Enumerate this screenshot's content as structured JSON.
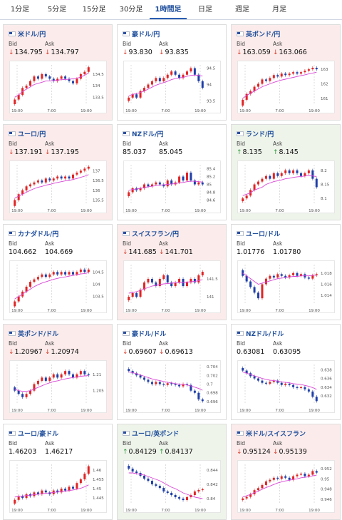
{
  "tabs": [
    {
      "label": "1分足",
      "active": false
    },
    {
      "label": "5分足",
      "active": false
    },
    {
      "label": "15分足",
      "active": false
    },
    {
      "label": "30分足",
      "active": false
    },
    {
      "label": "1時間足",
      "active": true
    },
    {
      "label": "日足",
      "active": false
    },
    {
      "label": "週足",
      "active": false
    },
    {
      "label": "月足",
      "active": false
    }
  ],
  "bid_label": "Bid",
  "ask_label": "Ask",
  "colors": {
    "up_candle": "#e02424",
    "down_candle": "#1f3fa8",
    "ma": "#d946d6",
    "pair_text": "#1f4e9c",
    "arrow_down": "#d93a2b",
    "arrow_up": "#2e9a3a"
  },
  "cards": [
    {
      "pair": "米ドル/円",
      "bid": "134.795",
      "ask": "134.797",
      "dir": "down",
      "bg": "down",
      "chart_data": {
        "type": "candlestick",
        "x_labels": [
          "19:00",
          "7:00",
          "19:00"
        ],
        "y_ticks": [
          "134.5",
          "134",
          "133.5"
        ],
        "ylim": [
          133.2,
          134.9
        ],
        "closes": [
          133.4,
          133.6,
          133.9,
          134.0,
          134.2,
          134.4,
          134.3,
          134.5,
          134.4,
          134.3,
          134.2,
          134.3,
          134.4,
          134.3,
          134.2,
          134.1,
          134.3,
          134.5,
          134.6,
          134.8
        ],
        "ma": [
          133.5,
          133.6,
          133.75,
          133.85,
          133.95,
          134.05,
          134.1,
          134.15,
          134.2,
          134.2,
          134.22,
          134.24,
          134.26,
          134.27,
          134.28,
          134.3,
          134.32,
          134.38,
          134.45,
          134.55
        ]
      }
    },
    {
      "pair": "豪ドル/円",
      "bid": "93.830",
      "ask": "93.835",
      "dir": "down",
      "bg": "flat",
      "chart_data": {
        "type": "candlestick",
        "x_labels": [
          "19:00",
          "7:00",
          "19:00"
        ],
        "y_ticks": [
          "94.5",
          "94",
          "93.5"
        ],
        "ylim": [
          93.4,
          94.6
        ],
        "closes": [
          93.6,
          93.7,
          93.6,
          93.8,
          93.9,
          94.0,
          94.1,
          94.2,
          94.1,
          94.2,
          94.3,
          94.4,
          94.3,
          94.2,
          94.3,
          94.4,
          94.5,
          94.3,
          94.1,
          93.9
        ],
        "ma": [
          93.65,
          93.7,
          93.72,
          93.76,
          93.8,
          93.86,
          93.92,
          93.98,
          94.02,
          94.06,
          94.1,
          94.15,
          94.18,
          94.2,
          94.22,
          94.25,
          94.28,
          94.29,
          94.28,
          94.26
        ]
      }
    },
    {
      "pair": "英ポンド/円",
      "bid": "163.059",
      "ask": "163.066",
      "dir": "down",
      "bg": "down",
      "chart_data": {
        "type": "candlestick",
        "x_labels": [
          "19:00",
          "7:00",
          "19:00"
        ],
        "y_ticks": [
          "163",
          "162",
          "161"
        ],
        "ylim": [
          160.6,
          163.3
        ],
        "closes": [
          160.9,
          161.3,
          161.5,
          161.8,
          162.0,
          162.3,
          162.2,
          162.4,
          162.6,
          162.5,
          162.7,
          162.6,
          162.7,
          162.8,
          162.7,
          162.8,
          162.9,
          163.0,
          163.1,
          163.0
        ],
        "ma": [
          161.0,
          161.2,
          161.35,
          161.5,
          161.65,
          161.8,
          161.9,
          162.0,
          162.1,
          162.18,
          162.26,
          162.32,
          162.38,
          162.44,
          162.5,
          162.56,
          162.62,
          162.68,
          162.74,
          162.8
        ]
      }
    },
    {
      "pair": "ユーロ/円",
      "bid": "137.191",
      "ask": "137.195",
      "dir": "down",
      "bg": "down",
      "chart_data": {
        "type": "candlestick",
        "x_labels": [
          "19:00",
          "7:00",
          "19:00"
        ],
        "y_ticks": [
          "137",
          "136.5",
          "136",
          "135.5"
        ],
        "ylim": [
          135.3,
          137.3
        ],
        "closes": [
          135.5,
          135.8,
          136.0,
          136.2,
          136.3,
          136.4,
          136.5,
          136.4,
          136.6,
          136.5,
          136.6,
          136.7,
          136.6,
          136.7,
          136.6,
          136.8,
          136.9,
          137.0,
          137.1,
          137.2
        ],
        "ma": [
          135.6,
          135.7,
          135.8,
          135.9,
          136.0,
          136.08,
          136.15,
          136.2,
          136.26,
          136.3,
          136.35,
          136.4,
          136.44,
          136.48,
          136.5,
          136.55,
          136.6,
          136.66,
          136.72,
          136.8
        ]
      }
    },
    {
      "pair": "NZドル/円",
      "bid": "85.037",
      "ask": "85.045",
      "dir": "none",
      "bg": "flat",
      "chart_data": {
        "type": "candlestick",
        "x_labels": [
          "19:00",
          "7:00",
          "19:00"
        ],
        "y_ticks": [
          "85.4",
          "85.2",
          "85",
          "84.8",
          "84.6"
        ],
        "ylim": [
          84.5,
          85.5
        ],
        "closes": [
          84.8,
          84.9,
          84.85,
          84.9,
          85.0,
          84.95,
          85.0,
          85.05,
          85.0,
          84.95,
          85.1,
          85.0,
          85.05,
          85.2,
          85.1,
          85.3,
          85.1,
          85.0,
          85.05,
          85.0
        ],
        "ma": [
          84.85,
          84.87,
          84.88,
          84.9,
          84.92,
          84.94,
          84.95,
          84.97,
          84.98,
          84.99,
          85.0,
          85.01,
          85.02,
          85.04,
          85.05,
          85.07,
          85.08,
          85.08,
          85.07,
          85.06
        ]
      }
    },
    {
      "pair": "ランド/円",
      "bid": "8.135",
      "ask": "8.145",
      "dir": "up",
      "bg": "up",
      "chart_data": {
        "type": "candlestick",
        "x_labels": [
          "19:00",
          "7:00",
          "19:00"
        ],
        "y_ticks": [
          "8.2",
          "8.15",
          "8.1"
        ],
        "ylim": [
          8.08,
          8.22
        ],
        "closes": [
          8.1,
          8.11,
          8.13,
          8.15,
          8.16,
          8.17,
          8.18,
          8.17,
          8.19,
          8.18,
          8.19,
          8.2,
          8.19,
          8.2,
          8.19,
          8.18,
          8.19,
          8.2,
          8.17,
          8.14
        ],
        "ma": [
          8.11,
          8.115,
          8.12,
          8.13,
          8.135,
          8.14,
          8.15,
          8.155,
          8.16,
          8.163,
          8.166,
          8.17,
          8.172,
          8.175,
          8.177,
          8.178,
          8.18,
          8.181,
          8.18,
          8.178
        ]
      }
    },
    {
      "pair": "カナダドル/円",
      "bid": "104.662",
      "ask": "104.669",
      "dir": "none",
      "bg": "flat",
      "chart_data": {
        "type": "candlestick",
        "x_labels": [
          "19:00",
          "7:00",
          "19:00"
        ],
        "y_ticks": [
          "104.5",
          "104",
          "103.5"
        ],
        "ylim": [
          103.2,
          104.8
        ],
        "closes": [
          103.3,
          103.5,
          103.7,
          103.9,
          104.1,
          104.2,
          104.3,
          104.4,
          104.3,
          104.4,
          104.5,
          104.4,
          104.5,
          104.4,
          104.5,
          104.4,
          104.5,
          104.6,
          104.5,
          104.6
        ],
        "ma": [
          103.4,
          103.5,
          103.6,
          103.7,
          103.8,
          103.9,
          103.98,
          104.05,
          104.1,
          104.15,
          104.2,
          104.24,
          104.28,
          104.3,
          104.33,
          104.36,
          104.39,
          104.42,
          104.44,
          104.47
        ]
      }
    },
    {
      "pair": "スイスフラン/円",
      "bid": "141.685",
      "ask": "141.701",
      "dir": "down",
      "bg": "down",
      "chart_data": {
        "type": "candlestick",
        "x_labels": [
          "19:00",
          "7:00",
          "19:00"
        ],
        "y_ticks": [
          "141.5",
          "141"
        ],
        "ylim": [
          140.8,
          141.9
        ],
        "closes": [
          141.0,
          141.1,
          141.0,
          141.2,
          141.4,
          141.5,
          141.4,
          141.3,
          141.5,
          141.6,
          141.4,
          141.3,
          141.4,
          141.5,
          141.3,
          141.4,
          141.5,
          141.4,
          141.6,
          141.7
        ],
        "ma": [
          141.1,
          141.12,
          141.14,
          141.18,
          141.22,
          141.26,
          141.3,
          141.32,
          141.34,
          141.36,
          141.37,
          141.38,
          141.39,
          141.4,
          141.4,
          141.41,
          141.42,
          141.43,
          141.45,
          141.48
        ]
      }
    },
    {
      "pair": "ユーロ/ドル",
      "bid": "1.01776",
      "ask": "1.01780",
      "dir": "none",
      "bg": "flat",
      "chart_data": {
        "type": "candlestick",
        "x_labels": [
          "19:00",
          "7:00",
          "19:00"
        ],
        "y_ticks": [
          "1.018",
          "1.016",
          "1.014"
        ],
        "ylim": [
          1.0125,
          1.0195
        ],
        "closes": [
          1.0175,
          1.0165,
          1.0155,
          1.0145,
          1.0135,
          1.016,
          1.017,
          1.0175,
          1.0172,
          1.0178,
          1.0175,
          1.0172,
          1.0176,
          1.018,
          1.0175,
          1.0178,
          1.0172,
          1.017,
          1.0176,
          1.0178
        ],
        "ma": [
          1.018,
          1.0175,
          1.017,
          1.0165,
          1.016,
          1.0162,
          1.0164,
          1.0166,
          1.0168,
          1.017,
          1.0171,
          1.0172,
          1.0173,
          1.0174,
          1.0174,
          1.0175,
          1.0175,
          1.0175,
          1.0176,
          1.0176
        ]
      }
    },
    {
      "pair": "英ポンド/ドル",
      "bid": "1.20967",
      "ask": "1.20974",
      "dir": "down",
      "bg": "down",
      "chart_data": {
        "type": "candlestick",
        "x_labels": [
          "19:00",
          "7:00",
          "19:00"
        ],
        "y_ticks": [
          "1.21",
          "1.205"
        ],
        "ylim": [
          1.201,
          1.213
        ],
        "closes": [
          1.205,
          1.204,
          1.203,
          1.204,
          1.205,
          1.207,
          1.208,
          1.209,
          1.208,
          1.209,
          1.21,
          1.209,
          1.21,
          1.211,
          1.21,
          1.209,
          1.21,
          1.211,
          1.21,
          1.2097
        ],
        "ma": [
          1.2055,
          1.205,
          1.2048,
          1.2048,
          1.205,
          1.2055,
          1.206,
          1.2065,
          1.207,
          1.2074,
          1.2078,
          1.208,
          1.2083,
          1.2086,
          1.2088,
          1.209,
          1.2092,
          1.2094,
          1.2095,
          1.2096
        ]
      }
    },
    {
      "pair": "豪ドル/ドル",
      "bid": "0.69607",
      "ask": "0.69613",
      "dir": "down",
      "bg": "flat",
      "chart_data": {
        "type": "candlestick",
        "x_labels": [
          "19:00",
          "7:00",
          "19:00"
        ],
        "y_ticks": [
          "0.704",
          "0.702",
          "0.7",
          "0.698",
          "0.696"
        ],
        "ylim": [
          0.6955,
          0.7045
        ],
        "closes": [
          0.703,
          0.7025,
          0.702,
          0.7015,
          0.701,
          0.7005,
          0.7,
          0.7005,
          0.7,
          0.6998,
          0.7002,
          0.7,
          0.6998,
          0.6995,
          0.7,
          0.6998,
          0.6985,
          0.698,
          0.6965,
          0.6961
        ],
        "ma": [
          0.7028,
          0.7026,
          0.7024,
          0.7021,
          0.7018,
          0.7015,
          0.7012,
          0.701,
          0.7008,
          0.7006,
          0.7004,
          0.7003,
          0.7001,
          0.7,
          0.6999,
          0.6998,
          0.6996,
          0.6993,
          0.699,
          0.6986
        ]
      }
    },
    {
      "pair": "NZドル/ドル",
      "bid": "0.63081",
      "ask": "0.63095",
      "dir": "none",
      "bg": "flat",
      "chart_data": {
        "type": "candlestick",
        "x_labels": [
          "19:00",
          "7:00",
          "19:00"
        ],
        "y_ticks": [
          "0.638",
          "0.636",
          "0.634",
          "0.632"
        ],
        "ylim": [
          0.6302,
          0.6392
        ],
        "closes": [
          0.6378,
          0.6372,
          0.6365,
          0.636,
          0.6355,
          0.635,
          0.6348,
          0.6352,
          0.6355,
          0.635,
          0.6345,
          0.6348,
          0.6345,
          0.634,
          0.6338,
          0.634,
          0.6335,
          0.633,
          0.6318,
          0.6308
        ],
        "ma": [
          0.6375,
          0.6372,
          0.6369,
          0.6366,
          0.6363,
          0.636,
          0.6358,
          0.6356,
          0.6355,
          0.6354,
          0.6352,
          0.6351,
          0.635,
          0.6348,
          0.6347,
          0.6346,
          0.6344,
          0.6342,
          0.6339,
          0.6335
        ]
      }
    },
    {
      "pair": "ユーロ/豪ドル",
      "bid": "1.46203",
      "ask": "1.46217",
      "dir": "none",
      "bg": "flat",
      "chart_data": {
        "type": "candlestick",
        "x_labels": [
          "19:00",
          "7:00",
          "19:00"
        ],
        "y_ticks": [
          "1.46",
          "1.455",
          "1.45",
          "1.445"
        ],
        "ylim": [
          1.442,
          1.463
        ],
        "closes": [
          1.444,
          1.446,
          1.445,
          1.447,
          1.446,
          1.448,
          1.447,
          1.449,
          1.448,
          1.447,
          1.449,
          1.448,
          1.45,
          1.449,
          1.451,
          1.45,
          1.453,
          1.455,
          1.458,
          1.462
        ],
        "ma": [
          1.4455,
          1.4458,
          1.446,
          1.4463,
          1.4465,
          1.4468,
          1.447,
          1.4473,
          1.4475,
          1.4477,
          1.448,
          1.4482,
          1.4485,
          1.4487,
          1.449,
          1.4493,
          1.4497,
          1.4502,
          1.451,
          1.452
        ]
      }
    },
    {
      "pair": "ユーロ/英ポンド",
      "bid": "0.84129",
      "ask": "0.84137",
      "dir": "up",
      "bg": "up",
      "chart_data": {
        "type": "candlestick",
        "x_labels": [
          "19:00",
          "7:00",
          "19:00"
        ],
        "y_ticks": [
          "0.844",
          "0.842",
          "0.84"
        ],
        "ylim": [
          0.8393,
          0.8448
        ],
        "closes": [
          0.8442,
          0.8438,
          0.8436,
          0.8432,
          0.8428,
          0.8425,
          0.842,
          0.8418,
          0.8415,
          0.841,
          0.8408,
          0.8405,
          0.8402,
          0.84,
          0.8398,
          0.8402,
          0.8405,
          0.841,
          0.8412,
          0.8413
        ],
        "ma": [
          0.8436,
          0.8436,
          0.8435,
          0.8434,
          0.8433,
          0.8431,
          0.8429,
          0.8427,
          0.8425,
          0.8422,
          0.8419,
          0.8416,
          0.8414,
          0.8411,
          0.8408,
          0.8406,
          0.8404,
          0.8402,
          0.8401,
          0.84
        ]
      }
    },
    {
      "pair": "米ドル/スイスフラン",
      "bid": "0.95124",
      "ask": "0.95139",
      "dir": "down",
      "bg": "down",
      "chart_data": {
        "type": "candlestick",
        "x_labels": [
          "19:00",
          "7:00",
          "19:00"
        ],
        "y_ticks": [
          "0.952",
          "0.95",
          "0.948",
          "0.946"
        ],
        "ylim": [
          0.9452,
          0.9528
        ],
        "closes": [
          0.9462,
          0.9465,
          0.947,
          0.9478,
          0.9482,
          0.9488,
          0.9495,
          0.9498,
          0.9502,
          0.95,
          0.9505,
          0.9502,
          0.9498,
          0.9505,
          0.9508,
          0.951,
          0.9505,
          0.9508,
          0.9515,
          0.9512
        ],
        "ma": [
          0.9465,
          0.9467,
          0.947,
          0.9473,
          0.9476,
          0.948,
          0.9483,
          0.9486,
          0.9489,
          0.9492,
          0.9494,
          0.9496,
          0.9497,
          0.9499,
          0.95,
          0.9502,
          0.9503,
          0.9504,
          0.9506,
          0.9507
        ]
      }
    }
  ]
}
